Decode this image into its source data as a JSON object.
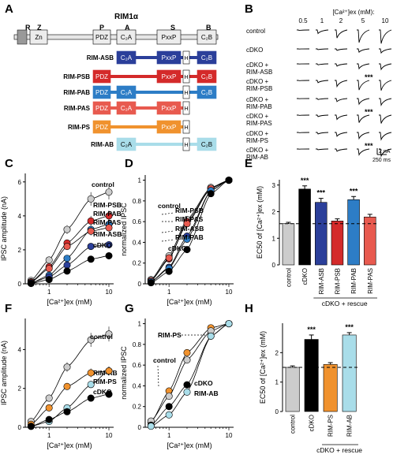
{
  "panel_letters": [
    "A",
    "B",
    "C",
    "D",
    "E",
    "F",
    "G",
    "H"
  ],
  "colors": {
    "control": "#cccccc",
    "cDKO": "#000000",
    "RIM-ASB": "#2b3f9a",
    "RIM-PSB": "#d42a2a",
    "RIM-PAB": "#2d7dc6",
    "RIM-PAS": "#e85a4f",
    "RIM-PS": "#f0922e",
    "RIM-AB": "#a9dde9"
  },
  "panelA": {
    "title": "RIM1α",
    "domain_letters": [
      "R",
      "Z",
      "P",
      "A",
      "S",
      "B"
    ],
    "full": {
      "name": "",
      "domains": [
        "Zn",
        "PDZ",
        "C2A",
        "PxxP",
        "C2B"
      ]
    },
    "constructs": [
      {
        "name": "RIM-ASB",
        "domains": [
          "C2A",
          "PxxP",
          "H",
          "C2B"
        ],
        "color": "#2b3f9a"
      },
      {
        "name": "RIM-PSB",
        "domains": [
          "PDZ",
          "PxxP",
          "H",
          "C2B"
        ],
        "color": "#d42a2a"
      },
      {
        "name": "RIM-PAB",
        "domains": [
          "PDZ",
          "C2A",
          "H",
          "C2B"
        ],
        "color": "#2d7dc6"
      },
      {
        "name": "RIM-PAS",
        "domains": [
          "PDZ",
          "C2A",
          "PxxP",
          "H"
        ],
        "color": "#e85a4f"
      },
      {
        "name": "RIM-PS",
        "domains": [
          "PDZ",
          "PxxP",
          "H"
        ],
        "color": "#f0922e"
      },
      {
        "name": "RIM-AB",
        "domains": [
          "C2A",
          "H",
          "C2B"
        ],
        "color": "#a9dde9"
      }
    ]
  },
  "panelB": {
    "header": "[Ca²⁺]ex (mM):",
    "concentrations": [
      "0.5",
      "1",
      "2",
      "5",
      "10"
    ],
    "rows": [
      {
        "label": [
          "control"
        ],
        "amps": [
          0.2,
          1.4,
          3.2,
          5.0,
          5.4
        ],
        "sig": ""
      },
      {
        "label": [
          "cDKO"
        ],
        "amps": [
          0.05,
          0.3,
          0.6,
          1.3,
          1.6
        ],
        "sig": ""
      },
      {
        "label": [
          "cDKO +",
          "RIM-ASB"
        ],
        "amps": [
          0.05,
          0.4,
          0.9,
          1.9,
          2.2
        ],
        "sig": ""
      },
      {
        "label": [
          "cDKO +",
          "RIM-PSB"
        ],
        "amps": [
          0.1,
          0.9,
          2.4,
          3.8,
          4.0
        ],
        "sig": "***"
      },
      {
        "label": [
          "cDKO +",
          "RIM-PAB"
        ],
        "amps": [
          0.05,
          0.4,
          1.2,
          2.2,
          2.6
        ],
        "sig": ""
      },
      {
        "label": [
          "cDKO +",
          "RIM-PAS"
        ],
        "amps": [
          0.1,
          0.6,
          1.7,
          3.0,
          3.3
        ],
        "sig": "***"
      },
      {
        "label": [
          "cDKO +",
          "RIM-PS"
        ],
        "amps": [
          0.1,
          0.6,
          1.5,
          2.4,
          2.8
        ],
        "sig": ""
      },
      {
        "label": [
          "cDKO +",
          "RIM-AB"
        ],
        "amps": [
          0.05,
          0.3,
          0.9,
          2.3,
          2.8
        ],
        "sig": "***"
      }
    ],
    "scale_y": "2 nA",
    "scale_x": "250 ms"
  },
  "chart_data": [
    {
      "panel": "C",
      "type": "line",
      "xscale": "log",
      "xlabel": "[Ca²⁺]ex (mM)",
      "ylabel": "IPSC amplitude (nA)",
      "xlim": [
        0.4,
        12
      ],
      "ylim": [
        0,
        6.5
      ],
      "xticks": [
        1,
        10
      ],
      "yticks": [
        0,
        2,
        4,
        6
      ],
      "x": [
        0.5,
        1,
        2,
        5,
        10
      ],
      "series": [
        {
          "name": "control",
          "color": "#cccccc",
          "values": [
            0.2,
            1.4,
            3.2,
            5.0,
            5.4
          ]
        },
        {
          "name": "RIM-PSB",
          "color": "#d42a2a",
          "values": [
            0.12,
            1.0,
            2.4,
            3.7,
            4.0
          ]
        },
        {
          "name": "RIM-PAB",
          "color": "#2d7dc6",
          "values": [
            0.05,
            0.5,
            1.5,
            3.2,
            3.5
          ]
        },
        {
          "name": "RIM-PAS",
          "color": "#e85a4f",
          "values": [
            0.1,
            0.9,
            2.2,
            3.1,
            3.3
          ]
        },
        {
          "name": "RIM-ASB",
          "color": "#2b3f9a",
          "values": [
            0.05,
            0.4,
            1.1,
            2.2,
            2.3
          ]
        },
        {
          "name": "cDKO",
          "color": "#000000",
          "values": [
            0.02,
            0.25,
            0.75,
            1.45,
            1.65
          ]
        }
      ]
    },
    {
      "panel": "D",
      "type": "line",
      "xscale": "log",
      "xlabel": "[Ca²⁺]ex (mM)",
      "ylabel": "normalized IPSC",
      "xlim": [
        0.4,
        12
      ],
      "ylim": [
        0,
        1.05
      ],
      "xticks": [
        1,
        10
      ],
      "yticks": [
        0,
        0.2,
        0.4,
        0.6,
        0.8,
        1.0
      ],
      "x": [
        0.5,
        1,
        2,
        5,
        10
      ],
      "series": [
        {
          "name": "control",
          "color": "#cccccc",
          "values": [
            0.04,
            0.27,
            0.62,
            0.93,
            1.0
          ]
        },
        {
          "name": "RIM-PSB",
          "color": "#d42a2a",
          "values": [
            0.03,
            0.24,
            0.6,
            0.92,
            1.0
          ]
        },
        {
          "name": "RIM-PAS",
          "color": "#e85a4f",
          "values": [
            0.03,
            0.25,
            0.58,
            0.92,
            1.0
          ]
        },
        {
          "name": "RIM-ASB",
          "color": "#2b3f9a",
          "values": [
            0.02,
            0.16,
            0.46,
            0.9,
            1.0
          ]
        },
        {
          "name": "RIM-PAB",
          "color": "#2d7dc6",
          "values": [
            0.02,
            0.15,
            0.43,
            0.9,
            1.0
          ]
        },
        {
          "name": "cDKO",
          "color": "#000000",
          "values": [
            0.01,
            0.12,
            0.33,
            0.87,
            1.0
          ]
        }
      ]
    },
    {
      "panel": "E",
      "type": "bar",
      "ylabel": "EC50 of [Ca²⁺]ex (mM)",
      "ylim": [
        0,
        3.2
      ],
      "yticks": [
        0,
        1,
        2,
        3
      ],
      "dashed_line": 1.55,
      "categories": [
        "control",
        "cDKO",
        "RIM-ASB",
        "RIM-PSB",
        "RIM-PAB",
        "RIM-PAS"
      ],
      "values": [
        1.55,
        2.85,
        2.35,
        1.65,
        2.45,
        1.8
      ],
      "errors": [
        0.05,
        0.12,
        0.15,
        0.08,
        0.12,
        0.1
      ],
      "colors": [
        "#cccccc",
        "#000000",
        "#2b3f9a",
        "#d42a2a",
        "#2d7dc6",
        "#e85a4f"
      ],
      "sig": [
        "",
        "***",
        "***",
        "",
        "***",
        ""
      ],
      "group_label": "cDKO + rescue"
    },
    {
      "panel": "F",
      "type": "line",
      "xscale": "log",
      "xlabel": "[Ca²⁺]ex (mM)",
      "ylabel": "IPSC amplitude (nA)",
      "xlim": [
        0.4,
        12
      ],
      "ylim": [
        0,
        5.6
      ],
      "xticks": [
        1,
        10
      ],
      "yticks": [
        0,
        2,
        4
      ],
      "x": [
        0.5,
        1,
        2,
        5,
        10
      ],
      "series": [
        {
          "name": "control",
          "color": "#cccccc",
          "values": [
            0.3,
            1.5,
            3.1,
            4.5,
            4.8
          ]
        },
        {
          "name": "RIM-AB",
          "color": "#a9dde9",
          "values": [
            0.05,
            0.3,
            1.0,
            2.2,
            2.9
          ]
        },
        {
          "name": "RIM-PS",
          "color": "#f0922e",
          "values": [
            0.15,
            1.0,
            2.1,
            2.8,
            2.9
          ]
        },
        {
          "name": "cDKO",
          "color": "#000000",
          "values": [
            0.05,
            0.4,
            0.8,
            1.5,
            1.7
          ]
        }
      ]
    },
    {
      "panel": "G",
      "type": "line",
      "xscale": "log",
      "xlabel": "[Ca²⁺]ex (mM)",
      "ylabel": "normalized IPSC",
      "xlim": [
        0.4,
        12
      ],
      "ylim": [
        0,
        1.05
      ],
      "xticks": [
        1,
        10
      ],
      "yticks": [
        0,
        0.2,
        0.4,
        0.6,
        0.8,
        1.0
      ],
      "x": [
        0.5,
        1,
        2,
        5,
        10
      ],
      "series": [
        {
          "name": "RIM-PS",
          "color": "#f0922e",
          "values": [
            0.05,
            0.35,
            0.72,
            0.96,
            1.0
          ]
        },
        {
          "name": "control",
          "color": "#cccccc",
          "values": [
            0.06,
            0.3,
            0.65,
            0.93,
            1.0
          ]
        },
        {
          "name": "cDKO",
          "color": "#000000",
          "values": [
            0.02,
            0.2,
            0.41,
            0.88,
            1.0
          ]
        },
        {
          "name": "RIM-AB",
          "color": "#a9dde9",
          "values": [
            0.01,
            0.12,
            0.34,
            0.88,
            1.0
          ]
        }
      ]
    },
    {
      "panel": "H",
      "type": "bar",
      "ylabel": "EC50 of [Ca²⁺]ex (mM)",
      "ylim": [
        0,
        3.0
      ],
      "yticks": [
        0,
        1,
        2
      ],
      "dashed_line": 1.5,
      "categories": [
        "control",
        "cDKO",
        "RIM-PS",
        "RIM-AB"
      ],
      "values": [
        1.5,
        2.45,
        1.6,
        2.6
      ],
      "errors": [
        0.05,
        0.15,
        0.06,
        0.08
      ],
      "colors": [
        "#cccccc",
        "#000000",
        "#f0922e",
        "#a9dde9"
      ],
      "sig": [
        "",
        "***",
        "",
        "***"
      ],
      "group_label": "cDKO + rescue"
    }
  ]
}
